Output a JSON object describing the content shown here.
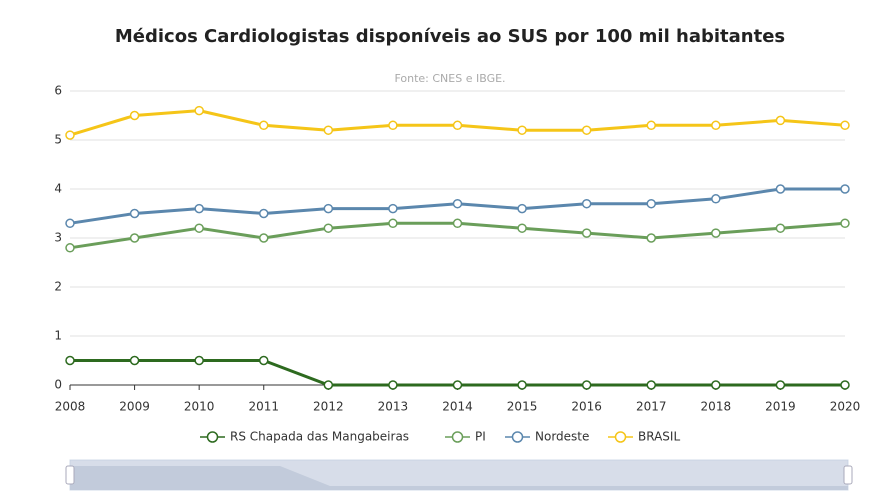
{
  "chart_data": {
    "type": "line",
    "title": "Médicos Cardiologistas disponíveis ao SUS por 100 mil habitantes",
    "subtitle": "Fonte: CNES e IBGE.",
    "categories": [
      "2008",
      "2009",
      "2010",
      "2011",
      "2012",
      "2013",
      "2014",
      "2015",
      "2016",
      "2017",
      "2018",
      "2019",
      "2020"
    ],
    "series": [
      {
        "name": "RS Chapada das Mangabeiras",
        "color": "#2d6a1f",
        "values": [
          0.5,
          0.5,
          0.5,
          0.5,
          0,
          0,
          0,
          0,
          0,
          0,
          0,
          0,
          0
        ]
      },
      {
        "name": "PI",
        "color": "#6a9e5a",
        "values": [
          2.8,
          3.0,
          3.2,
          3.0,
          3.2,
          3.3,
          3.3,
          3.2,
          3.1,
          3.0,
          3.1,
          3.2,
          3.3
        ]
      },
      {
        "name": "Nordeste",
        "color": "#5b87ad",
        "values": [
          3.3,
          3.5,
          3.6,
          3.5,
          3.6,
          3.6,
          3.7,
          3.6,
          3.7,
          3.7,
          3.8,
          4.0,
          4.0
        ]
      },
      {
        "name": "BRASIL",
        "color": "#f5c518",
        "values": [
          5.1,
          5.5,
          5.6,
          5.3,
          5.2,
          5.3,
          5.3,
          5.2,
          5.2,
          5.3,
          5.3,
          5.4,
          5.3
        ]
      }
    ],
    "ylim": [
      0,
      6
    ],
    "yticks": [
      0,
      1,
      2,
      3,
      4,
      5,
      6
    ],
    "grid": true,
    "legend": "bottom"
  }
}
